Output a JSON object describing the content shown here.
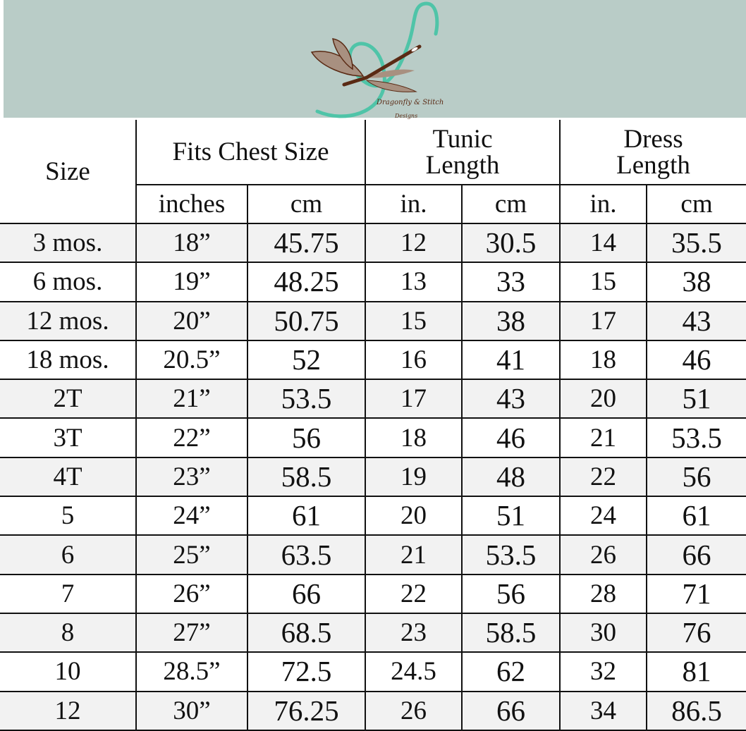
{
  "brand": {
    "name": "Dragonfly & Stitch",
    "sub": "Designs",
    "colors": {
      "banner": "#b9ccc7",
      "thread": "#4fc4a8",
      "wing": "#a89080",
      "body": "#5a2a14"
    }
  },
  "headers": {
    "size": "Size",
    "chest": "Fits Chest Size",
    "tunic": "Tunic Length",
    "dress": "Dress Length",
    "sub": [
      "inches",
      "cm",
      "in.",
      "cm",
      "in.",
      "cm"
    ]
  },
  "rows": [
    [
      "3 mos.",
      "18”",
      "45.75",
      "12",
      "30.5",
      "14",
      "35.5"
    ],
    [
      "6 mos.",
      "19”",
      "48.25",
      "13",
      "33",
      "15",
      "38"
    ],
    [
      "12 mos.",
      "20”",
      "50.75",
      "15",
      "38",
      "17",
      "43"
    ],
    [
      "18 mos.",
      "20.5”",
      "52",
      "16",
      "41",
      "18",
      "46"
    ],
    [
      "2T",
      "21”",
      "53.5",
      "17",
      "43",
      "20",
      "51"
    ],
    [
      "3T",
      "22”",
      "56",
      "18",
      "46",
      "21",
      "53.5"
    ],
    [
      "4T",
      "23”",
      "58.5",
      "19",
      "48",
      "22",
      "56"
    ],
    [
      "5",
      "24”",
      "61",
      "20",
      "51",
      "24",
      "61"
    ],
    [
      "6",
      "25”",
      "63.5",
      "21",
      "53.5",
      "26",
      "66"
    ],
    [
      "7",
      "26”",
      "66",
      "22",
      "56",
      "28",
      "71"
    ],
    [
      "8",
      "27”",
      "68.5",
      "23",
      "58.5",
      "30",
      "76"
    ],
    [
      "10",
      "28.5”",
      "72.5",
      "24.5",
      "62",
      "32",
      "81"
    ],
    [
      "12",
      "30”",
      "76.25",
      "26",
      "66",
      "34",
      "86.5"
    ]
  ]
}
